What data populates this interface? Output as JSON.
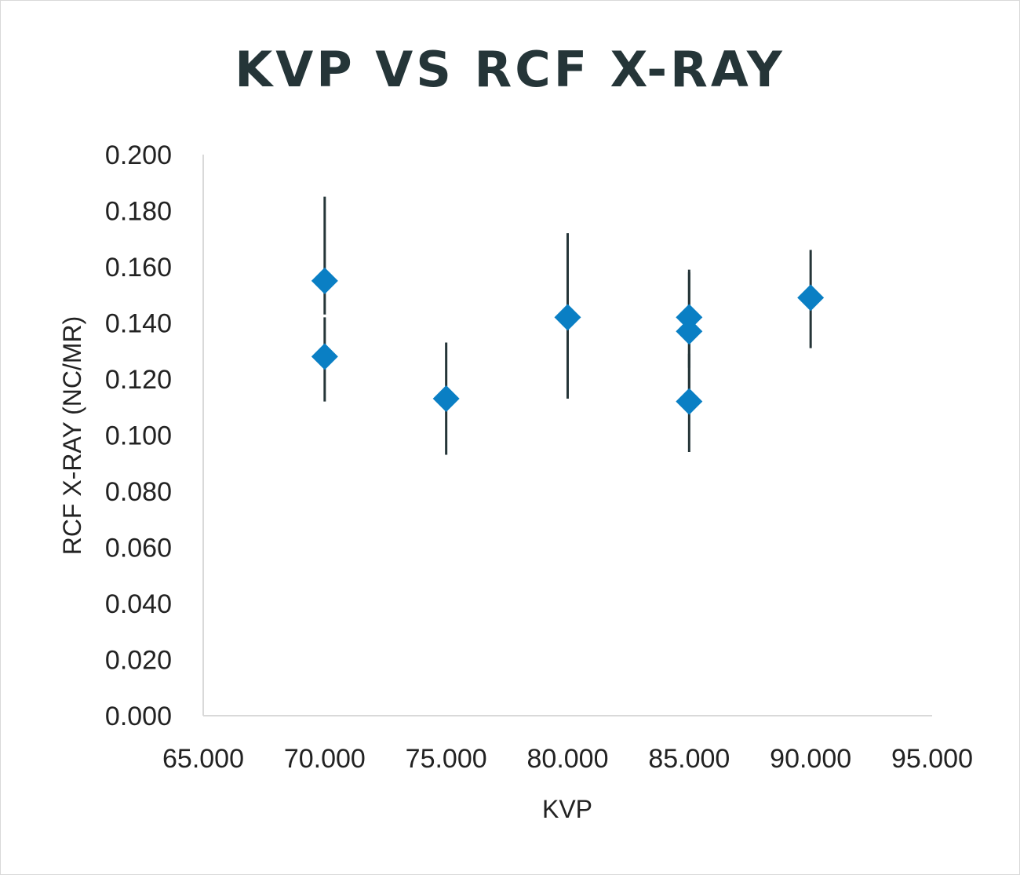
{
  "chart_data": {
    "type": "scatter",
    "title": "KVP VS RCF X-RAY",
    "xlabel": "KVP",
    "ylabel": "RCF X-RAY (NC/MR)",
    "xlim": [
      65,
      95
    ],
    "ylim": [
      0,
      0.2
    ],
    "x_ticks": [
      "65.000",
      "70.000",
      "75.000",
      "80.000",
      "85.000",
      "90.000",
      "95.000"
    ],
    "y_ticks": [
      "0.000",
      "0.020",
      "0.040",
      "0.060",
      "0.080",
      "0.100",
      "0.120",
      "0.140",
      "0.160",
      "0.180",
      "0.200"
    ],
    "grid": false,
    "legend": "none",
    "marker": "diamond",
    "colors": {
      "marker": "#0a7fc4",
      "error_bar": "#253538",
      "axis": "#d9d9d9",
      "title": "#253538"
    },
    "points": [
      {
        "x": 70,
        "y": 0.155,
        "err_low": 0.143,
        "err_high": 0.185
      },
      {
        "x": 70,
        "y": 0.128,
        "err_low": 0.112,
        "err_high": 0.142
      },
      {
        "x": 75,
        "y": 0.113,
        "err_low": 0.093,
        "err_high": 0.133
      },
      {
        "x": 80,
        "y": 0.142,
        "err_low": 0.113,
        "err_high": 0.172
      },
      {
        "x": 85,
        "y": 0.142,
        "err_low": 0.124,
        "err_high": 0.159
      },
      {
        "x": 85,
        "y": 0.137,
        "err_low": 0.115,
        "err_high": 0.158
      },
      {
        "x": 85,
        "y": 0.112,
        "err_low": 0.094,
        "err_high": 0.129
      },
      {
        "x": 90,
        "y": 0.149,
        "err_low": 0.131,
        "err_high": 0.166
      }
    ]
  }
}
